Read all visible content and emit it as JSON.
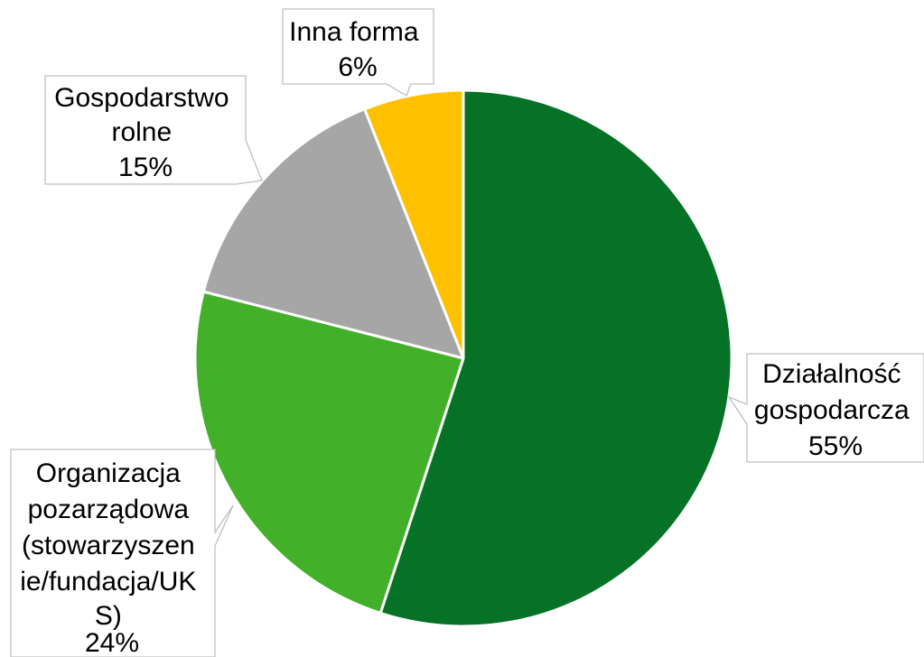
{
  "chart_data": {
    "type": "pie",
    "title": "",
    "legend": "none",
    "slices": [
      {
        "name": "Działalność gospodarcza",
        "label_lines": [
          "Działalność",
          "gospodarcza"
        ],
        "value": 55,
        "value_label": "55%",
        "color": "#057225"
      },
      {
        "name": "Organizacja pozarządowa (stowarzyszenie/fundacja/UKS)",
        "label_lines": [
          "Organizacja",
          "pozarządowa",
          "(stowarzyszen",
          "ie/fundacja/UK",
          "S)"
        ],
        "value": 24,
        "value_label": "24%",
        "color": "#43b02a"
      },
      {
        "name": "Gospodarstwo rolne",
        "label_lines": [
          "Gospodarstwo",
          "rolne"
        ],
        "value": 15,
        "value_label": "15%",
        "color": "#a6a6a6"
      },
      {
        "name": "Inna forma",
        "label_lines": [
          "Inna forma"
        ],
        "value": 6,
        "value_label": "6%",
        "color": "#ffc000"
      }
    ]
  }
}
